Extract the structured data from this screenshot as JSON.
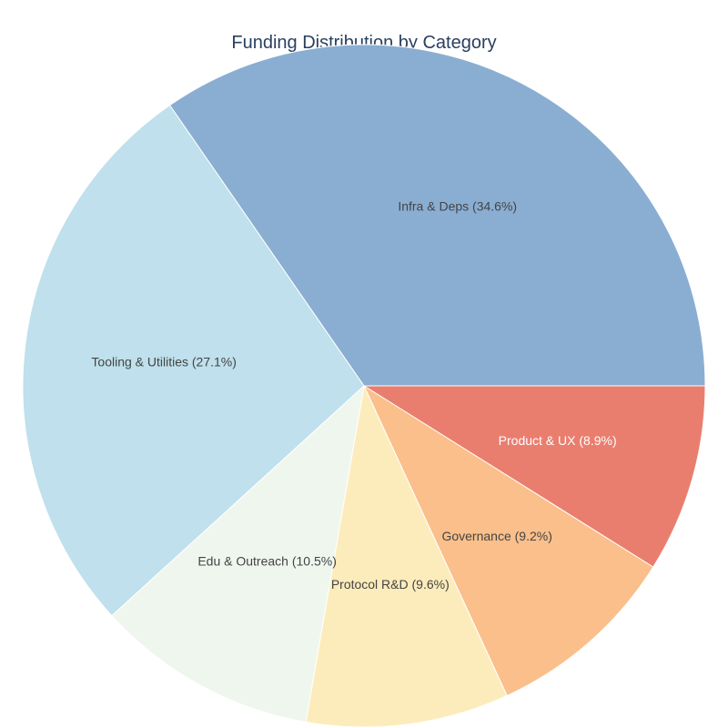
{
  "chart_data": {
    "type": "pie",
    "title": "Funding Distribution by Category",
    "start_angle_deg": 0,
    "direction": "clockwise",
    "slices": [
      {
        "label": "Product & UX",
        "value": 8.9,
        "color": "#e97e6f",
        "text_label": "Product & UX (8.9%)",
        "text_color": "#ffffff"
      },
      {
        "label": "Governance",
        "value": 9.2,
        "color": "#fabf8a",
        "text_label": "Governance (9.2%)",
        "text_color": "#444444"
      },
      {
        "label": "Protocol R&D",
        "value": 9.6,
        "color": "#fdecbb",
        "text_label": "Protocol R&D (9.6%)",
        "text_color": "#444444"
      },
      {
        "label": "Edu & Outreach",
        "value": 10.5,
        "color": "#eff6ee",
        "text_label": "Edu & Outreach (10.5%)",
        "text_color": "#444444"
      },
      {
        "label": "Tooling & Utilities",
        "value": 27.1,
        "color": "#bfe0ec",
        "text_label": "Tooling & Utilities (27.1%)",
        "text_color": "#444444"
      },
      {
        "label": "Infra & Deps",
        "value": 34.6,
        "color": "#8aaed2",
        "text_label": "Infra & Deps (34.6%)",
        "text_color": "#444444"
      }
    ]
  },
  "colors": {
    "title": "#2a3f5f",
    "background": "#ffffff"
  }
}
